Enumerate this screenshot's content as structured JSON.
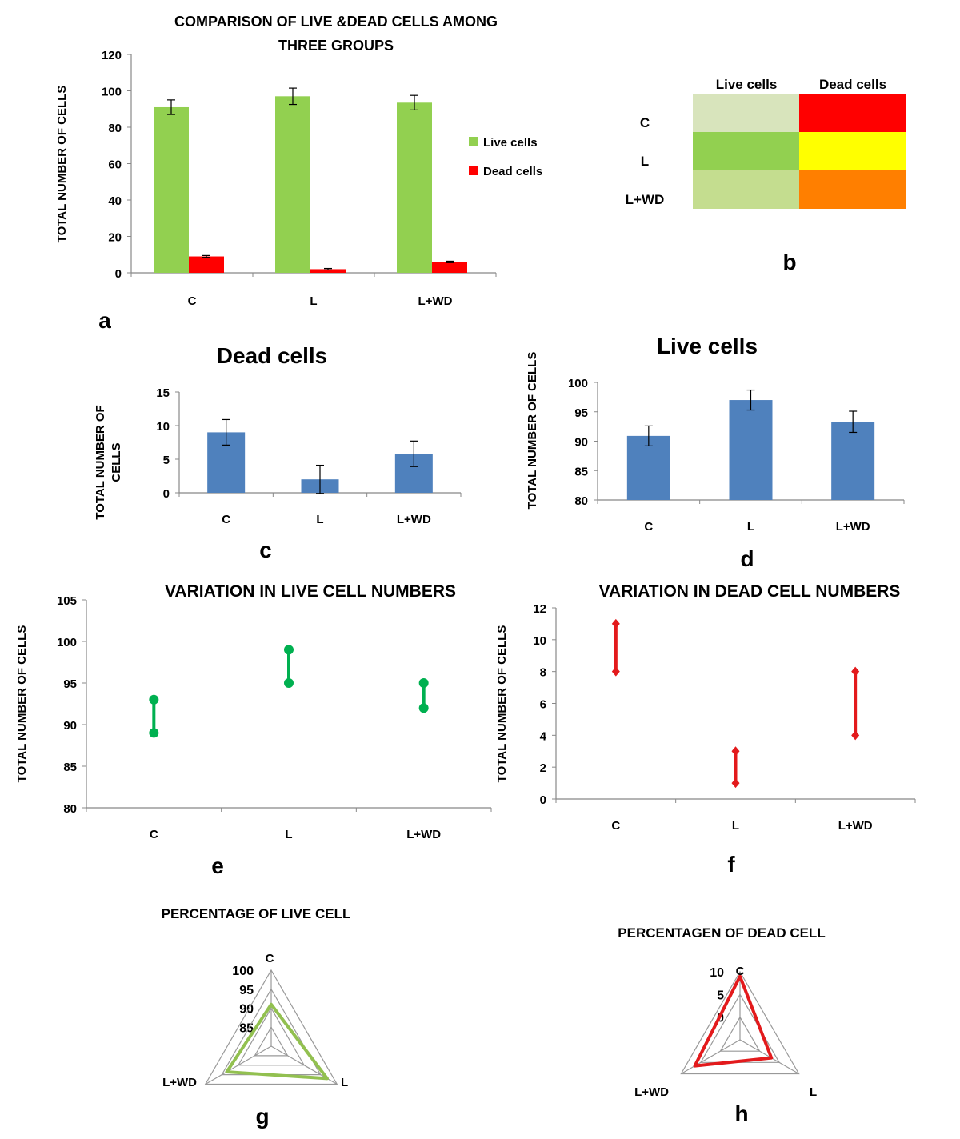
{
  "chart_data": [
    {
      "id": "a",
      "type": "bar",
      "panel_label": "a",
      "title_lines": [
        "COMPARISON OF LIVE &DEAD CELLS AMONG",
        "THREE GROUPS"
      ],
      "ylabel": "TOTAL NUMBER OF CELLS",
      "categories": [
        "C",
        "L",
        "L+WD"
      ],
      "ylim": [
        0,
        120
      ],
      "yticks": [
        "0",
        "20",
        "40",
        "60",
        "80",
        "100",
        "120"
      ],
      "series": [
        {
          "name": "Live cells",
          "color": "#92d050",
          "values": [
            91,
            97,
            93.5
          ],
          "errors": [
            4,
            4.5,
            4
          ]
        },
        {
          "name": "Dead cells",
          "color": "#ff0000",
          "values": [
            9,
            2,
            6
          ],
          "errors": [
            0.5,
            0.4,
            0.4
          ]
        }
      ],
      "legend_position": "right",
      "grid": false
    },
    {
      "id": "b",
      "type": "heatmap",
      "panel_label": "b",
      "columns": [
        "Live cells",
        "Dead cells"
      ],
      "rows": [
        "C",
        "L",
        "L+WD"
      ],
      "cell_colors": [
        [
          "#d8e4bc",
          "#ff0000"
        ],
        [
          "#92d050",
          "#ffff00"
        ],
        [
          "#c4dd8f",
          "#ff7f00"
        ]
      ]
    },
    {
      "id": "c",
      "type": "bar",
      "panel_label": "c",
      "title": "Dead cells",
      "ylabel_lines": [
        "TOTAL NUMBER OF",
        "CELLS"
      ],
      "categories": [
        "C",
        "L",
        "L+WD"
      ],
      "values": [
        9,
        2,
        5.8
      ],
      "errors": [
        1.9,
        2.1,
        1.9
      ],
      "ylim": [
        0,
        15
      ],
      "yticks": [
        "0",
        "5",
        "10",
        "15"
      ],
      "color": "#4f81bd",
      "grid": false
    },
    {
      "id": "d",
      "type": "bar",
      "panel_label": "d",
      "title": "Live cells",
      "ylabel": "TOTAL NUMBER OF CELLS",
      "categories": [
        "C",
        "L",
        "L+WD"
      ],
      "values": [
        90.9,
        97,
        93.3
      ],
      "errors": [
        1.7,
        1.7,
        1.8
      ],
      "ylim": [
        80,
        100
      ],
      "yticks": [
        "80",
        "85",
        "90",
        "95",
        "100"
      ],
      "color": "#4f81bd",
      "grid": false
    },
    {
      "id": "e",
      "type": "line",
      "subtype": "range",
      "panel_label": "e",
      "title": "VARIATION IN LIVE CELL NUMBERS",
      "ylabel": "TOTAL NUMBER OF CELLS",
      "categories": [
        "C",
        "L",
        "L+WD"
      ],
      "low": [
        89,
        95,
        92
      ],
      "high": [
        93,
        99,
        95
      ],
      "ylim": [
        80,
        105
      ],
      "yticks": [
        "80",
        "85",
        "90",
        "95",
        "100",
        "105"
      ],
      "color": "#00b050"
    },
    {
      "id": "f",
      "type": "line",
      "subtype": "range",
      "panel_label": "f",
      "title": "VARIATION IN DEAD CELL NUMBERS",
      "ylabel": "TOTAL NUMBER OF CELLS",
      "categories": [
        "C",
        "L",
        "L+WD"
      ],
      "low": [
        8,
        1,
        4
      ],
      "high": [
        11,
        3,
        8
      ],
      "ylim": [
        0,
        12
      ],
      "yticks": [
        "0",
        "2",
        "4",
        "6",
        "8",
        "10",
        "12"
      ],
      "color": "#e31a1c"
    },
    {
      "id": "g",
      "type": "radar",
      "panel_label": "g",
      "title": "PERCENTAGE OF LIVE CELL",
      "axes": [
        "C",
        "L",
        "L+WD"
      ],
      "values": [
        91,
        97,
        93.5
      ],
      "rlim": [
        80,
        100
      ],
      "rticks": [
        "85",
        "90",
        "95",
        "100"
      ],
      "color": "#92c050"
    },
    {
      "id": "h",
      "type": "radar",
      "panel_label": "h",
      "title": "PERCENTAGEN OF DEAD CELL",
      "axes": [
        "C",
        "L",
        "L+WD"
      ],
      "values": [
        9,
        3,
        6.5
      ],
      "rlim": [
        -5,
        10
      ],
      "rticks": [
        "0",
        "5",
        "10"
      ],
      "color": "#e31a1c"
    }
  ]
}
